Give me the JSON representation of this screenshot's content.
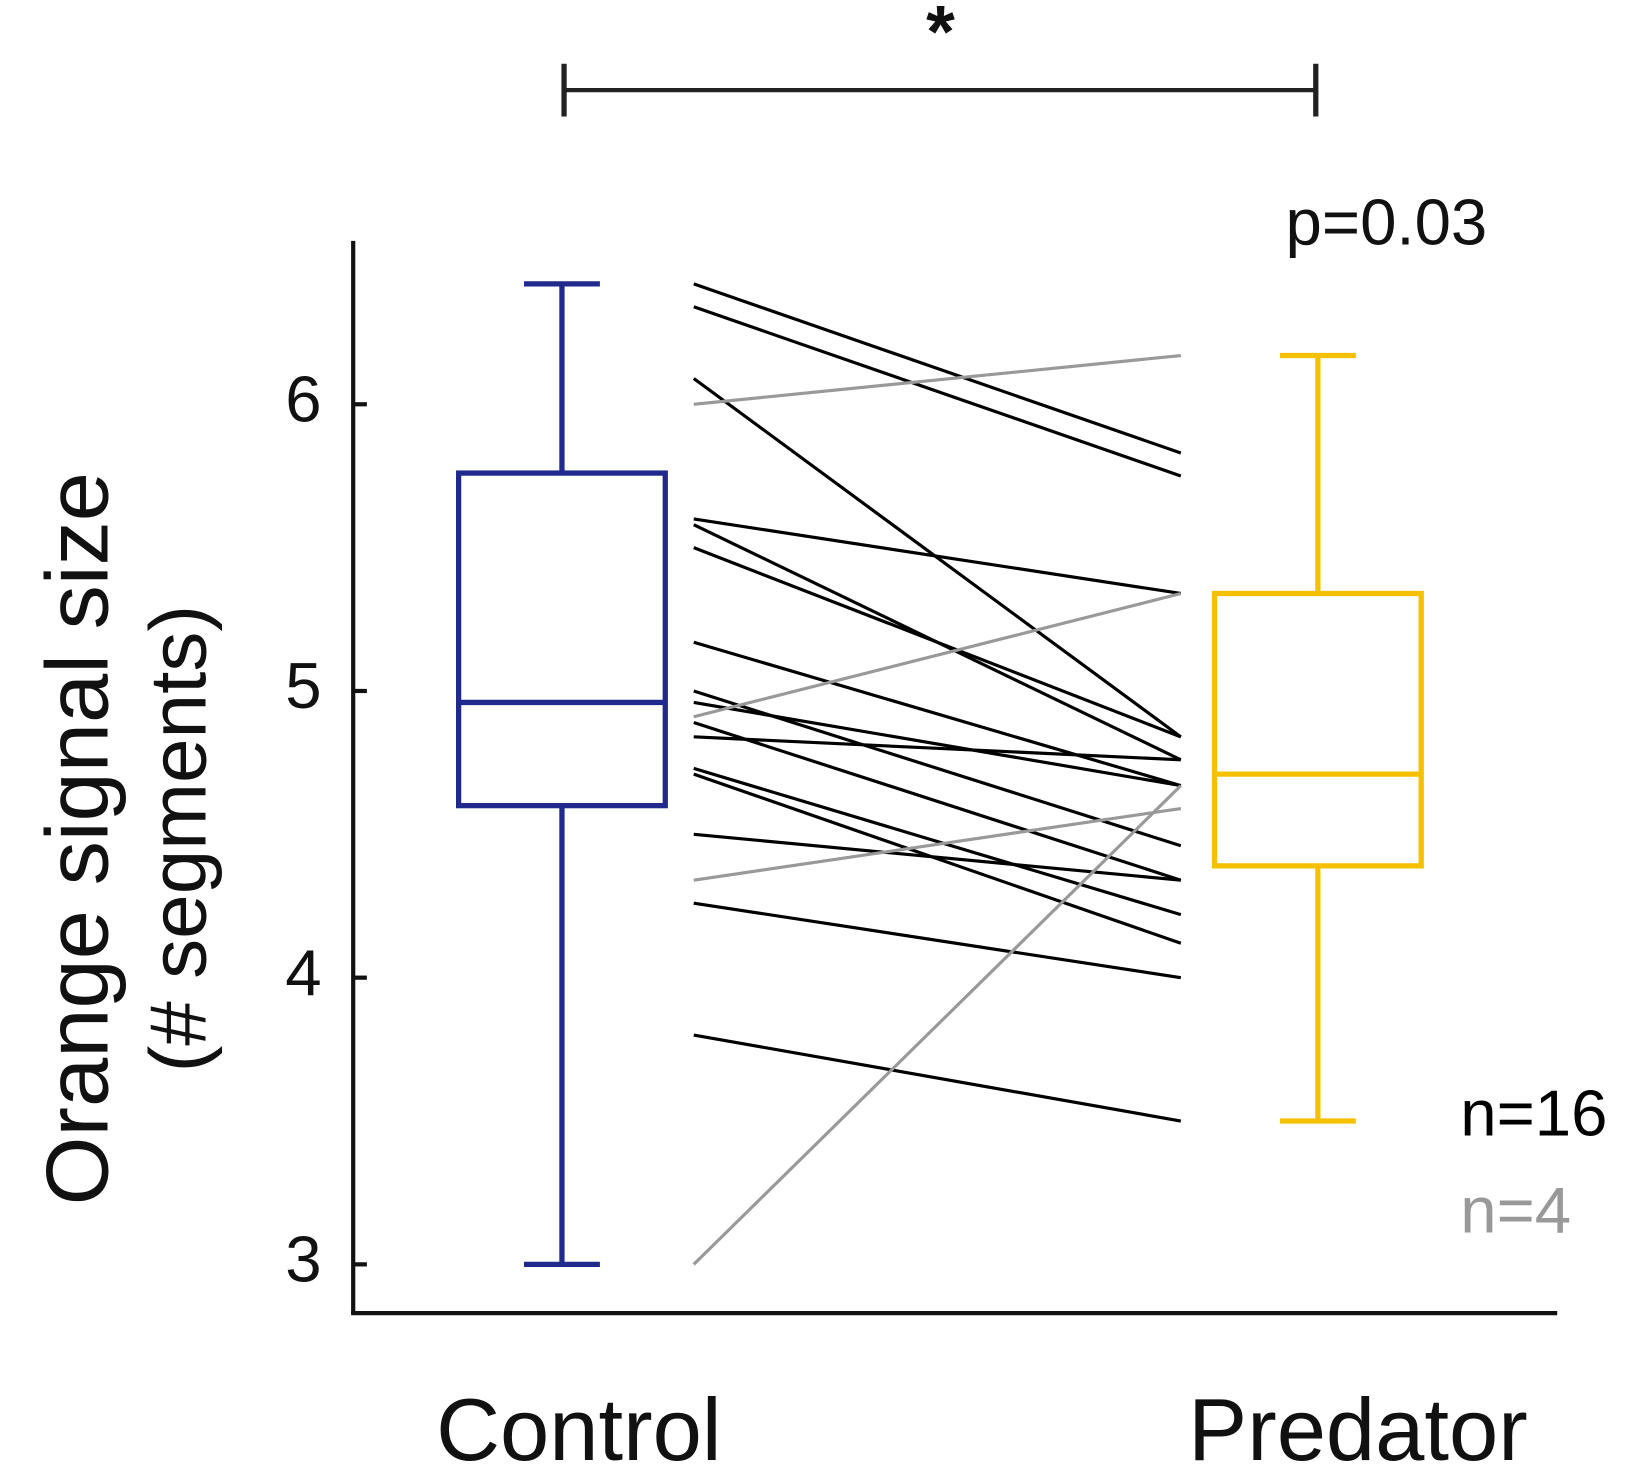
{
  "chart_data": {
    "type": "box",
    "annotations": [
      "*",
      "p=0.03"
    ],
    "y_label": [
      "Orange signal size",
      "(# segments)"
    ],
    "categories": [
      "Control",
      "Predator"
    ],
    "boxes": [
      {
        "min": 3.0,
        "q1": 4.6,
        "median": 4.96,
        "q3": 5.76,
        "max": 6.42,
        "color": "#1f2a8c"
      },
      {
        "min": 3.5,
        "q1": 4.39,
        "median": 4.71,
        "q3": 5.34,
        "max": 6.17,
        "color": "#f5c000"
      }
    ],
    "series": [
      {
        "name": "n=16",
        "color": "#000000",
        "pairs": [
          [
            6.42,
            5.83
          ],
          [
            6.34,
            5.75
          ],
          [
            6.09,
            4.84
          ],
          [
            5.6,
            5.34
          ],
          [
            5.58,
            4.76
          ],
          [
            5.5,
            4.84
          ],
          [
            5.17,
            4.67
          ],
          [
            5.0,
            4.46
          ],
          [
            4.96,
            4.67
          ],
          [
            4.89,
            4.34
          ],
          [
            4.84,
            4.76
          ],
          [
            4.73,
            4.22
          ],
          [
            4.71,
            4.12
          ],
          [
            4.5,
            4.34
          ],
          [
            4.26,
            4.0
          ],
          [
            3.8,
            3.5
          ]
        ]
      },
      {
        "name": "n=4",
        "color": "#999999",
        "pairs": [
          [
            6.0,
            6.17
          ],
          [
            4.91,
            5.34
          ],
          [
            4.34,
            4.59
          ],
          [
            3.0,
            4.67
          ]
        ]
      }
    ],
    "ylim": [
      2.83,
      6.57
    ],
    "yticks": [
      3,
      4,
      5,
      6
    ]
  }
}
